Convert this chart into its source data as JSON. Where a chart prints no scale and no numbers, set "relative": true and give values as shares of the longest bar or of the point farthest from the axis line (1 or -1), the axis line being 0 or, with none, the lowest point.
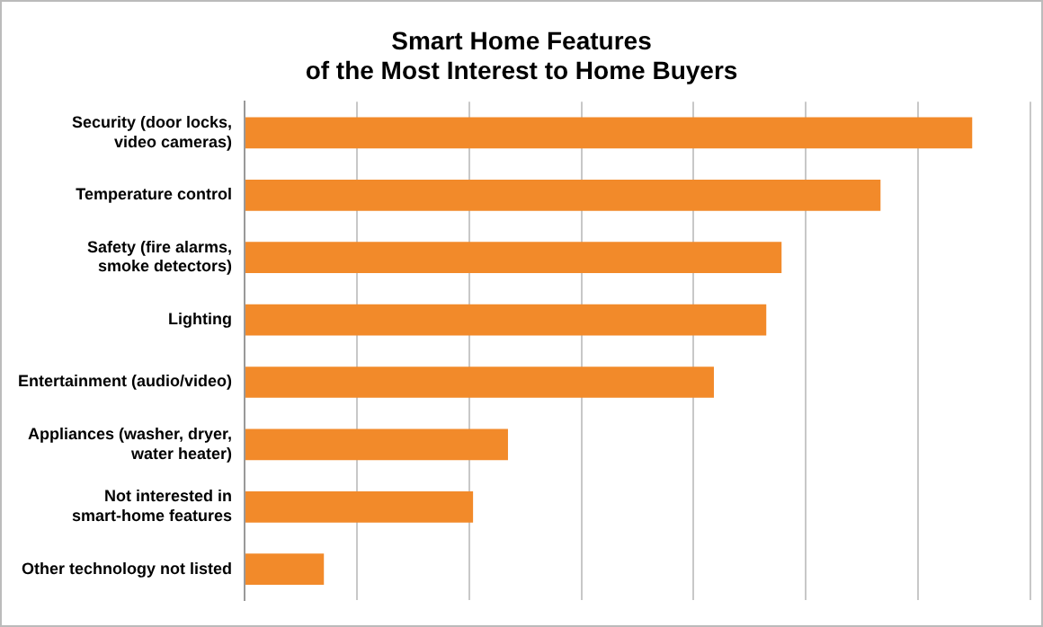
{
  "chart_data": {
    "type": "bar",
    "orientation": "horizontal",
    "relative": true,
    "title": "Smart Home Features\nof the Most Interest to Home Buyers",
    "categories": [
      "Security (door locks,\nvideo cameras)",
      "Temperature control",
      "Safety (fire alarms,\nsmoke detectors)",
      "Lighting",
      "Entertainment (audio/video)",
      "Appliances (washer, dryer,\nwater heater)",
      "Not interested in\nsmart-home features",
      "Other technology not listed"
    ],
    "values": [
      1,
      0.874,
      0.738,
      0.717,
      0.645,
      0.362,
      0.314,
      0.109
    ],
    "color": "#f28a2a",
    "grid": "x",
    "legend": false
  }
}
